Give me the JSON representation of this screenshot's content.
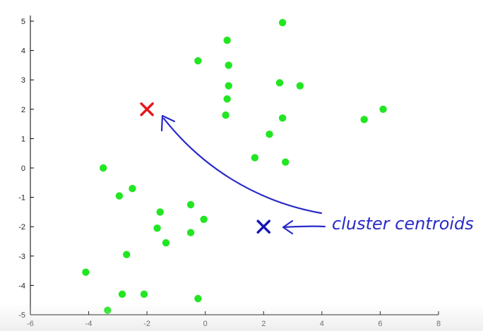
{
  "chart_data": {
    "type": "scatter",
    "title": "",
    "xlabel": "",
    "ylabel": "",
    "xlim": [
      -6,
      8
    ],
    "ylim": [
      -5,
      5
    ],
    "x_ticks": [
      -6,
      -4,
      -2,
      0,
      2,
      4,
      6,
      8
    ],
    "y_ticks": [
      -5,
      -4,
      -3,
      -2,
      -1,
      0,
      1,
      2,
      3,
      4,
      5
    ],
    "grid": false,
    "series": [
      {
        "marker": "dot",
        "color": "#22e622",
        "points": [
          [
            2.65,
            4.95
          ],
          [
            0.75,
            4.35
          ],
          [
            -0.25,
            3.65
          ],
          [
            0.8,
            3.5
          ],
          [
            0.8,
            2.8
          ],
          [
            2.55,
            2.9
          ],
          [
            3.25,
            2.8
          ],
          [
            0.75,
            2.35
          ],
          [
            0.7,
            1.8
          ],
          [
            2.65,
            1.7
          ],
          [
            6.1,
            2.0
          ],
          [
            5.45,
            1.65
          ],
          [
            2.2,
            1.15
          ],
          [
            1.7,
            0.35
          ],
          [
            2.75,
            0.2
          ],
          [
            -3.5,
            0.0
          ],
          [
            -2.5,
            -0.7
          ],
          [
            -2.95,
            -0.95
          ],
          [
            -0.5,
            -1.25
          ],
          [
            -1.55,
            -1.5
          ],
          [
            -0.05,
            -1.75
          ],
          [
            -1.65,
            -2.05
          ],
          [
            -0.5,
            -2.2
          ],
          [
            -1.35,
            -2.55
          ],
          [
            -2.7,
            -2.95
          ],
          [
            -4.1,
            -3.55
          ],
          [
            -2.85,
            -4.3
          ],
          [
            -2.1,
            -4.3
          ],
          [
            -0.25,
            -4.45
          ],
          [
            -3.35,
            -4.85
          ]
        ]
      }
    ],
    "centroids": [
      {
        "x": -2.0,
        "y": 2.0,
        "color": "#e8141c"
      },
      {
        "x": 2.0,
        "y": -2.0,
        "color": "#1414b4"
      }
    ],
    "annotations": [
      {
        "text": "cluster centroids",
        "color": "#2a2ac8"
      }
    ]
  }
}
